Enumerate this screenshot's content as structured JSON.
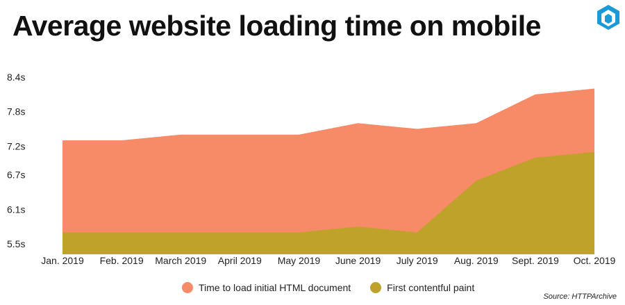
{
  "title": "Average website loading time on mobile",
  "source": "Source: HTTPArchive",
  "logo": {
    "icon": "cube-logo-icon",
    "color": "#1a9bd7"
  },
  "legend": [
    {
      "label": "Time to load initial HTML document",
      "color": "#f78a67"
    },
    {
      "label": "First contentful paint",
      "color": "#bfa22a"
    }
  ],
  "chart_data": {
    "type": "area",
    "title": "Average website loading time on mobile",
    "categories": [
      "Jan. 2019",
      "Feb. 2019",
      "March 2019",
      "April 2019",
      "May 2019",
      "June 2019",
      "July 2019",
      "Aug. 2019",
      "Sept. 2019",
      "Oct. 2019"
    ],
    "y_ticks": [
      "5.5s",
      "6.1s",
      "6.7s",
      "7.2s",
      "7.8s",
      "8.4s"
    ],
    "y_tick_values": [
      5.5,
      6.1,
      6.7,
      7.2,
      7.8,
      8.4
    ],
    "ylim": [
      5.4,
      8.4
    ],
    "grid": false,
    "legend_position": "bottom",
    "series": [
      {
        "name": "Time to load initial HTML document",
        "color": "#f78a67",
        "values": [
          7.3,
          7.3,
          7.4,
          7.4,
          7.4,
          7.6,
          7.5,
          7.6,
          8.1,
          8.2
        ]
      },
      {
        "name": "First contentful paint",
        "color": "#bfa22a",
        "values": [
          5.7,
          5.7,
          5.7,
          5.7,
          5.7,
          5.8,
          5.7,
          6.6,
          7.0,
          7.1
        ]
      }
    ]
  }
}
